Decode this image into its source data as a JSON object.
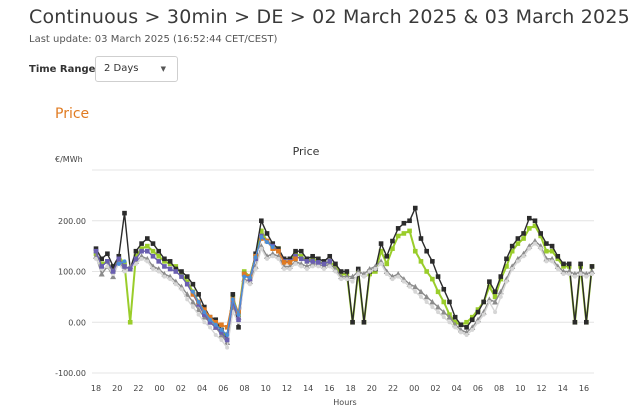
{
  "header": {
    "title": "Continuous > 30min > DE > 02 March 2025 & 03 March 2025",
    "last_update": "Last update: 03 March 2025 (16:52:44 CET/CEST)"
  },
  "controls": {
    "time_range_label": "Time Range",
    "time_range_value": "2 Days",
    "caret_icon": "chevron-down-icon"
  },
  "section": {
    "heading": "Price"
  },
  "colors": {
    "heading": "#e07b22",
    "series_green": "#9acd2a",
    "series_black": "#2b2b2b",
    "series_gray": "#8c8c8c",
    "series_light": "#d6d6d6",
    "series_purple": "#6a5fb0",
    "series_orange": "#e07b22",
    "series_blue": "#4a8fd8"
  },
  "chart_data": {
    "type": "line",
    "title": "Price",
    "ylabel": "€/MWh",
    "xlabel": "Hours",
    "ylim": [
      -100,
      300
    ],
    "grid": true,
    "yticks": [
      -100,
      0,
      100,
      200
    ],
    "ytick_labels": [
      "-100.00",
      "0.00",
      "100.00",
      "200.00"
    ],
    "xticks": [
      "18",
      "20",
      "22",
      "00",
      "02",
      "04",
      "06",
      "08",
      "10",
      "12",
      "14",
      "16",
      "18",
      "20",
      "22",
      "00",
      "02",
      "04",
      "06",
      "08",
      "10",
      "12",
      "14",
      "16"
    ],
    "series": [
      {
        "color_key": "series_green",
        "values": [
          135,
          115,
          120,
          100,
          130,
          115,
          0,
          130,
          145,
          150,
          140,
          130,
          120,
          115,
          110,
          95,
          80,
          60,
          40,
          20,
          5,
          -5,
          -15,
          -30,
          50,
          15,
          100,
          90,
          130,
          180,
          160,
          150,
          145,
          120,
          120,
          135,
          130,
          120,
          125,
          120,
          115,
          120,
          110,
          95,
          95,
          0,
          100,
          0,
          95,
          100,
          140,
          115,
          145,
          170,
          175,
          180,
          140,
          120,
          100,
          85,
          60,
          40,
          15,
          0,
          -5,
          0,
          10,
          25,
          40,
          70,
          50,
          85,
          110,
          140,
          155,
          165,
          185,
          190,
          170,
          140,
          140,
          125,
          110,
          110,
          0,
          110,
          0,
          110
        ]
      },
      {
        "color_key": "series_black",
        "values": [
          145,
          125,
          135,
          110,
          130,
          215,
          105,
          140,
          155,
          165,
          155,
          140,
          125,
          120,
          105,
          100,
          90,
          75,
          55,
          30,
          10,
          5,
          -15,
          -25,
          55,
          -10,
          95,
          85,
          135,
          200,
          175,
          155,
          145,
          125,
          125,
          140,
          140,
          125,
          130,
          125,
          120,
          130,
          115,
          100,
          100,
          0,
          105,
          0,
          100,
          105,
          155,
          130,
          160,
          185,
          195,
          200,
          225,
          165,
          140,
          120,
          90,
          65,
          40,
          10,
          -5,
          -10,
          5,
          20,
          40,
          80,
          60,
          90,
          125,
          150,
          165,
          175,
          205,
          200,
          175,
          155,
          150,
          130,
          115,
          115,
          0,
          115,
          0,
          110
        ]
      },
      {
        "color_key": "series_gray",
        "values": [
          130,
          95,
          110,
          90,
          120,
          105,
          110,
          120,
          130,
          125,
          110,
          105,
          95,
          90,
          80,
          70,
          55,
          40,
          25,
          10,
          0,
          -10,
          -25,
          -40,
          30,
          10,
          85,
          80,
          110,
          150,
          130,
          135,
          130,
          110,
          110,
          120,
          115,
          110,
          115,
          115,
          110,
          115,
          105,
          90,
          90,
          90,
          100,
          95,
          105,
          110,
          120,
          100,
          90,
          95,
          85,
          75,
          70,
          60,
          50,
          40,
          30,
          20,
          10,
          -5,
          -15,
          -20,
          -10,
          5,
          20,
          45,
          40,
          60,
          85,
          110,
          125,
          135,
          150,
          160,
          150,
          125,
          125,
          110,
          100,
          100,
          95,
          100,
          95,
          100
        ]
      },
      {
        "color_key": "series_light",
        "values": [
          125,
          105,
          110,
          95,
          115,
          100,
          105,
          115,
          125,
          120,
          105,
          100,
          90,
          85,
          75,
          65,
          45,
          30,
          15,
          0,
          -10,
          -25,
          -35,
          -50,
          20,
          0,
          80,
          75,
          105,
          145,
          125,
          130,
          125,
          105,
          105,
          115,
          110,
          105,
          110,
          110,
          105,
          110,
          100,
          85,
          85,
          80,
          95,
          90,
          100,
          105,
          115,
          95,
          85,
          90,
          80,
          70,
          60,
          50,
          40,
          30,
          20,
          10,
          0,
          -10,
          -20,
          -25,
          -15,
          0,
          15,
          40,
          20,
          50,
          80,
          105,
          120,
          130,
          145,
          155,
          145,
          120,
          120,
          105,
          95,
          95,
          90,
          95,
          90,
          95
        ]
      },
      {
        "color_key": "series_purple",
        "values": [
          140,
          110,
          120,
          100,
          125,
          110,
          105,
          125,
          140,
          140,
          130,
          120,
          110,
          105,
          100,
          90,
          75,
          55,
          35,
          15,
          0,
          -10,
          -20,
          -35,
          40,
          5,
          95,
          85,
          125,
          170,
          160,
          150,
          140,
          120,
          120,
          130,
          125,
          120,
          120,
          118,
          115,
          120
        ]
      },
      {
        "color_key": "series_orange",
        "values": [
          null,
          null,
          null,
          null,
          null,
          null,
          null,
          null,
          null,
          null,
          null,
          null,
          null,
          null,
          null,
          null,
          null,
          55,
          40,
          25,
          10,
          0,
          -5,
          -10,
          45,
          20,
          95,
          90,
          130,
          165,
          160,
          145,
          140,
          118,
          118,
          125
        ]
      },
      {
        "color_key": "series_blue",
        "values": [
          null,
          null,
          null,
          null,
          115,
          120,
          null,
          null,
          null,
          null,
          null,
          null,
          null,
          null,
          null,
          null,
          null,
          60,
          40,
          20,
          5,
          -5,
          -15,
          -25,
          45,
          15,
          90,
          88,
          128,
          168,
          158,
          148
        ]
      }
    ]
  }
}
